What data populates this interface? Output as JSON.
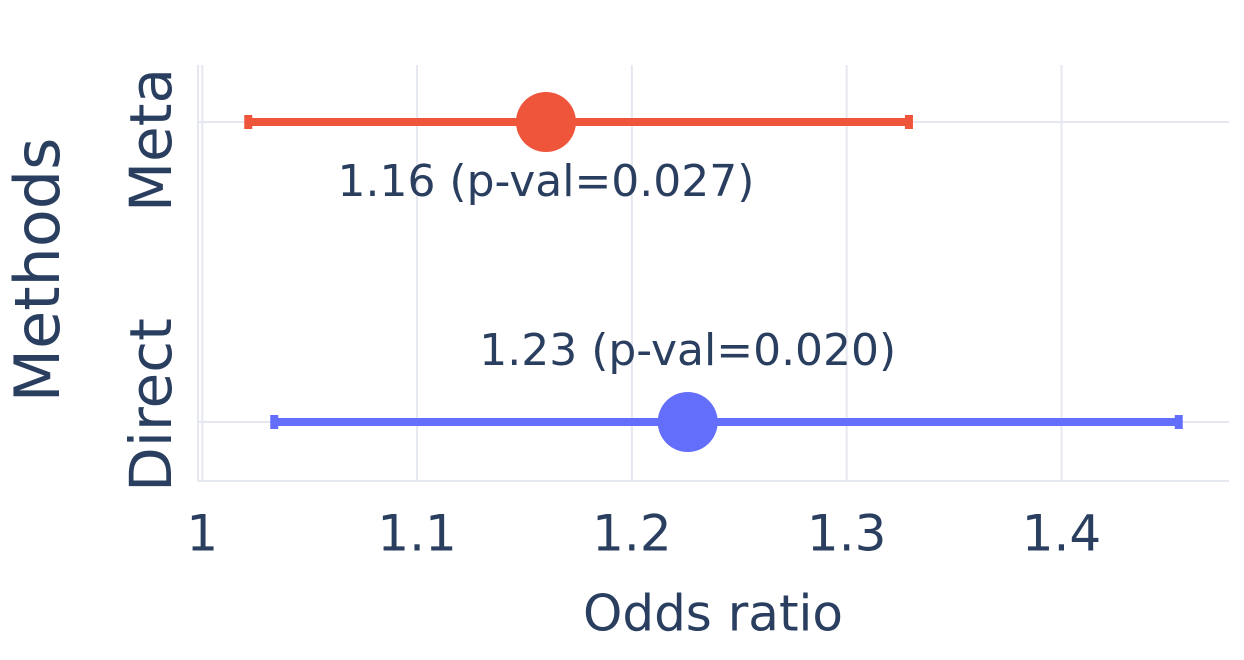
{
  "chart_data": {
    "type": "forest",
    "categories": [
      "Direct",
      "Meta"
    ],
    "values": [
      1.226,
      1.16
    ],
    "ci_low": [
      1.0335,
      1.0214
    ],
    "ci_high": [
      1.4546,
      1.329
    ],
    "value_labels": [
      "1.23 (p-val=0.020)",
      "1.16 (p-val=0.027)"
    ],
    "colors": [
      "#636efa",
      "#ef553b"
    ],
    "xlabel": "Odds ratio",
    "ylabel": "Methods",
    "xlim": [
      0.998,
      1.478
    ],
    "xticks": [
      1,
      1.1,
      1.2,
      1.3,
      1.4
    ],
    "grid": true
  }
}
